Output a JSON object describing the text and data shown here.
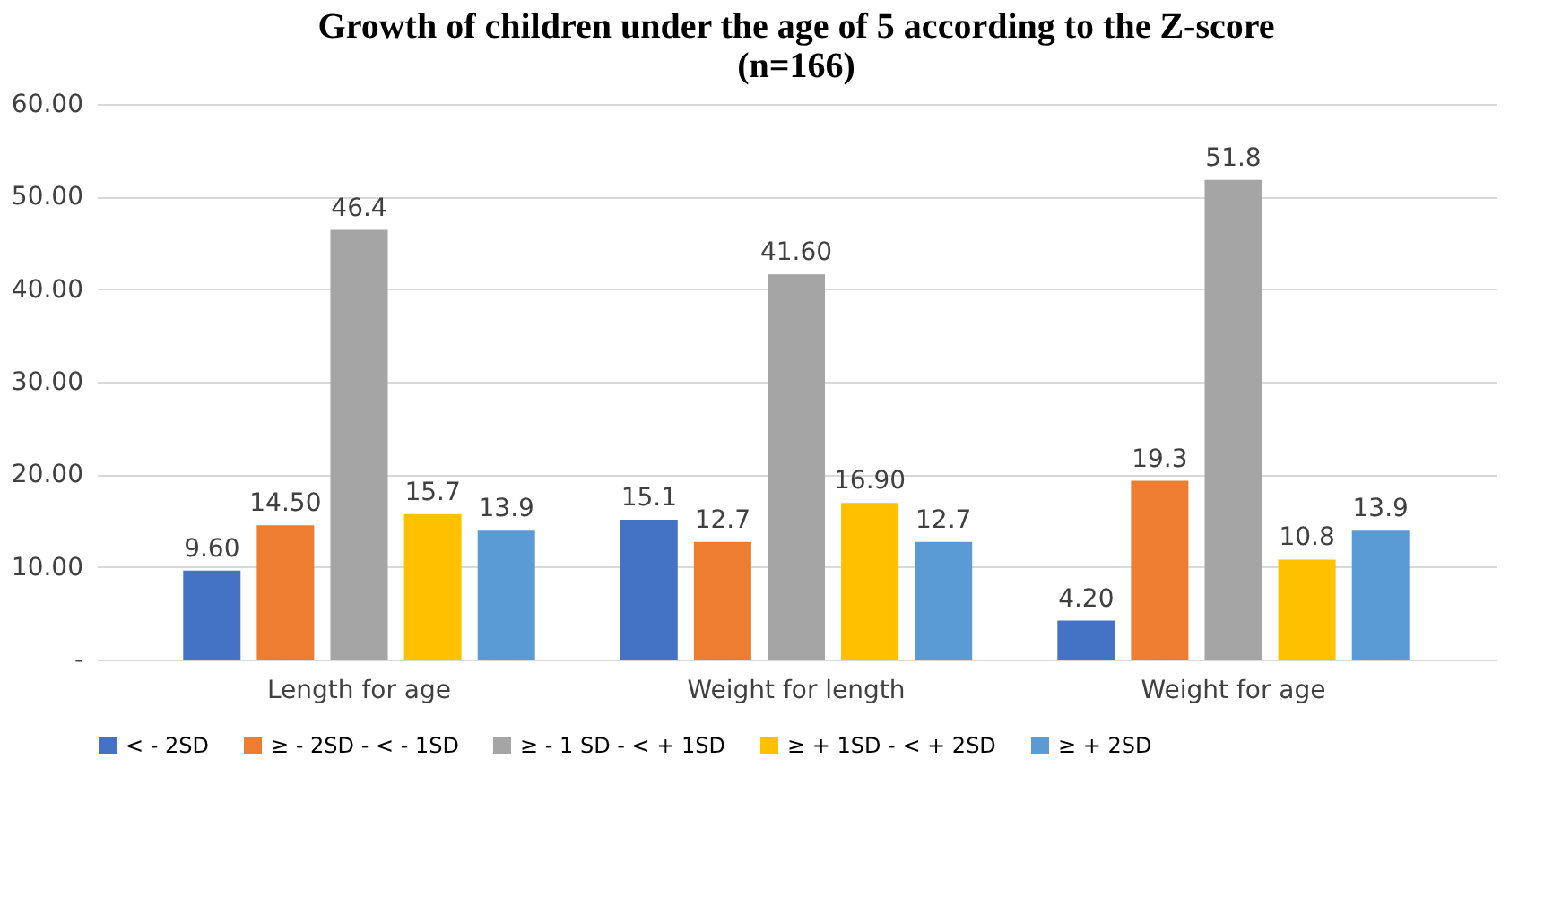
{
  "chart_data": {
    "type": "bar",
    "title": "Growth of children under the age of 5 according to the Z-score\n(n=166)",
    "categories": [
      "Length for age",
      "Weight for length",
      "Weight for age"
    ],
    "series": [
      {
        "name": "< - 2SD",
        "color": "#4472c4",
        "values": [
          9.6,
          15.1,
          4.2
        ],
        "value_labels": [
          "9.60",
          "15.1",
          "4.20"
        ]
      },
      {
        "name": "≥ - 2SD - < - 1SD",
        "color": "#ed7d31",
        "values": [
          14.5,
          12.7,
          19.3
        ],
        "value_labels": [
          "14.50",
          "12.7",
          "19.3"
        ]
      },
      {
        "name": "≥ - 1 SD - < + 1SD",
        "color": "#a5a5a5",
        "values": [
          46.4,
          41.6,
          51.8
        ],
        "value_labels": [
          "46.4",
          "41.60",
          "51.8"
        ]
      },
      {
        "name": "≥ + 1SD - < + 2SD",
        "color": "#ffc000",
        "values": [
          15.7,
          16.9,
          10.8
        ],
        "value_labels": [
          "15.7",
          "16.90",
          "10.8"
        ]
      },
      {
        "name": "≥ + 2SD",
        "color": "#5b9bd5",
        "values": [
          13.9,
          12.7,
          13.9
        ],
        "value_labels": [
          "13.9",
          "12.7",
          "13.9"
        ]
      }
    ],
    "ylim": [
      0,
      60
    ],
    "yticks": [
      {
        "value": 0,
        "label": "-"
      },
      {
        "value": 10,
        "label": "10.00"
      },
      {
        "value": 20,
        "label": "20.00"
      },
      {
        "value": 30,
        "label": "30.00"
      },
      {
        "value": 40,
        "label": "40.00"
      },
      {
        "value": 50,
        "label": "50.00"
      },
      {
        "value": 60,
        "label": "60.00"
      }
    ],
    "grid": "y",
    "legend": "bottom"
  }
}
